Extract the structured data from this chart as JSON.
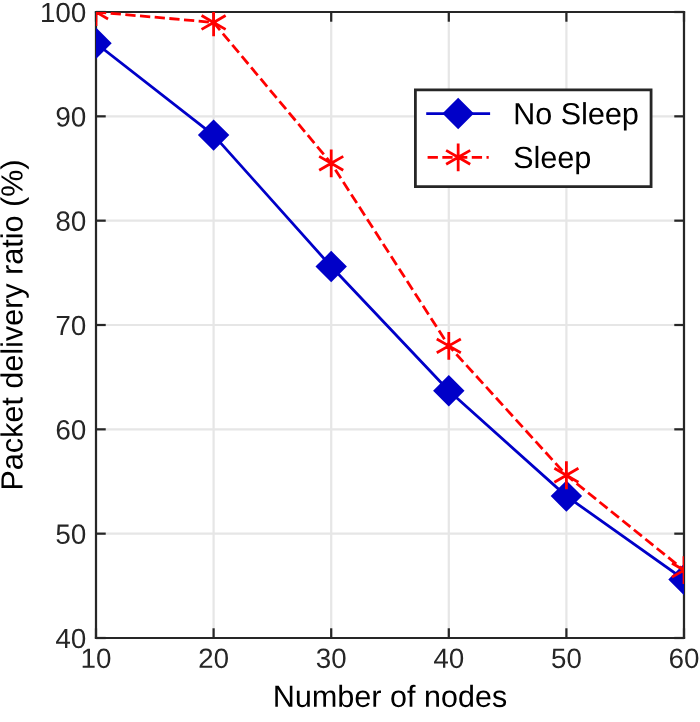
{
  "chart_data": {
    "type": "line",
    "xlabel": "Number of nodes",
    "ylabel": "Packet delivery ratio (%)",
    "x": [
      10,
      20,
      30,
      40,
      50,
      60
    ],
    "series": [
      {
        "name": "No Sleep",
        "color": "#0000c8",
        "values": [
          97,
          88.2,
          75.6,
          63.7,
          53.6,
          45.6
        ],
        "marker": "diamond",
        "line_style": "solid"
      },
      {
        "name": "Sleep",
        "color": "#ff0000",
        "values": [
          100,
          99,
          85.5,
          68,
          55.6,
          46.5
        ],
        "marker": "cross",
        "line_style": "dashed"
      }
    ],
    "xlim": [
      10,
      60
    ],
    "ylim": [
      40,
      100
    ],
    "xticks": [
      10,
      20,
      30,
      40,
      50,
      60
    ],
    "yticks": [
      40,
      50,
      60,
      70,
      80,
      90,
      100
    ],
    "grid": true,
    "legend": "top right"
  }
}
